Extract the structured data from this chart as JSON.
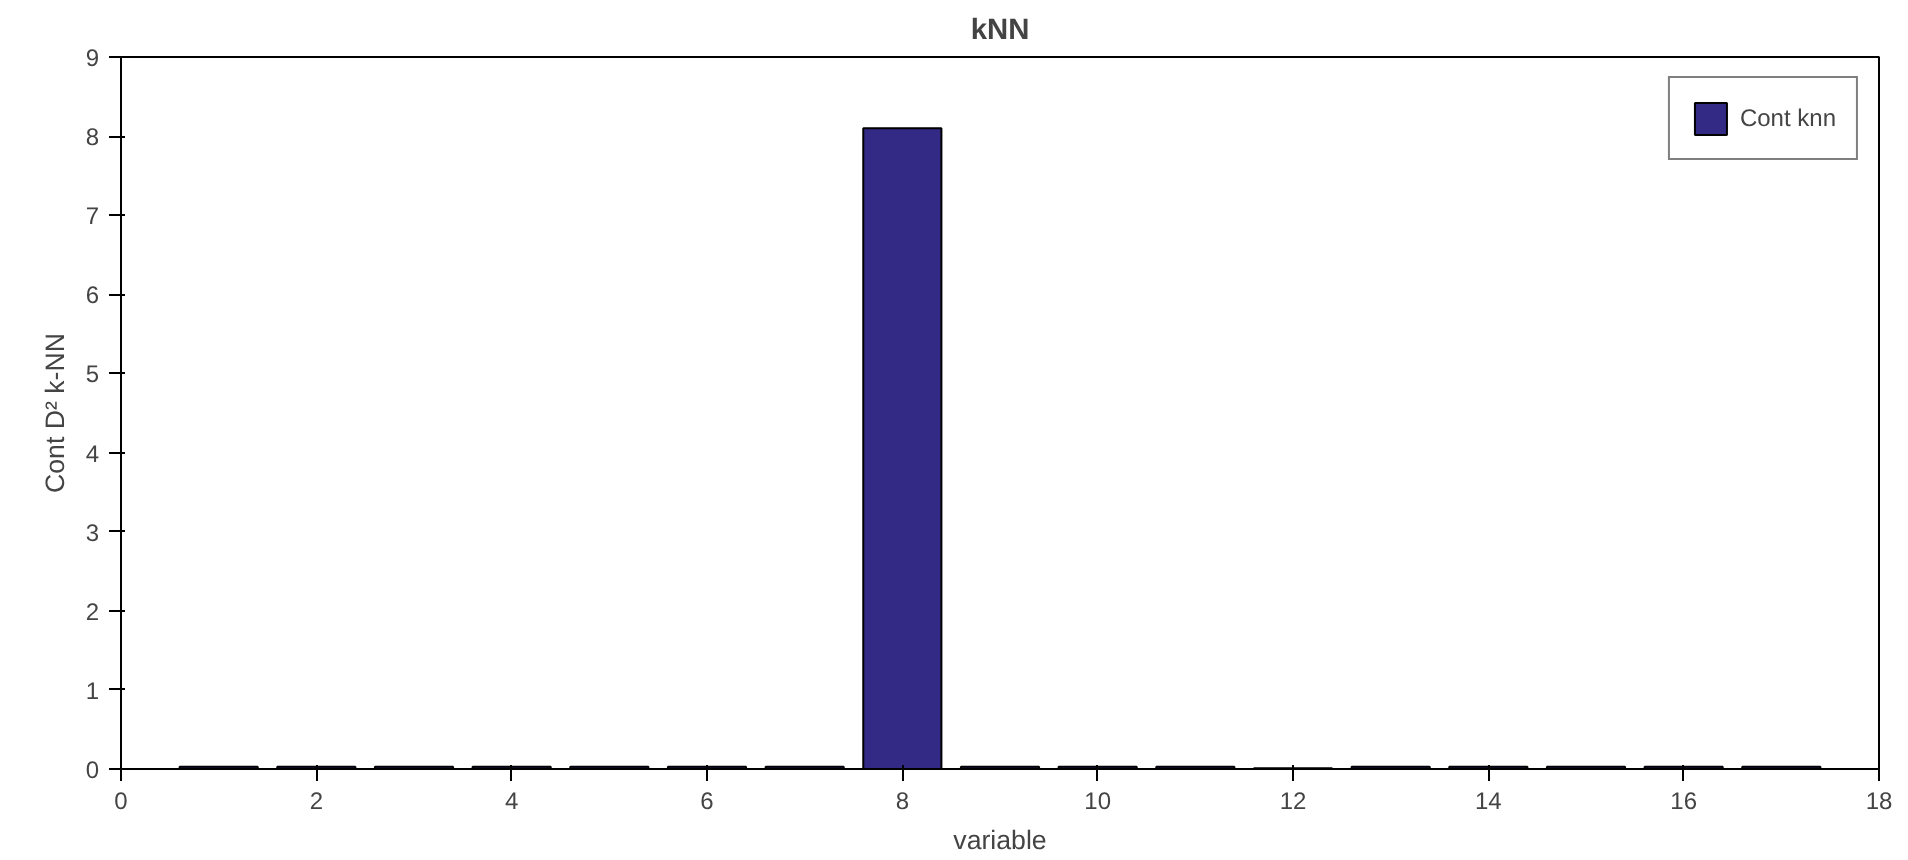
{
  "chart_data": {
    "type": "bar",
    "title": "kNN",
    "xlabel": "variable",
    "ylabel": "Cont D² k-NN",
    "x": [
      1,
      2,
      3,
      4,
      5,
      6,
      7,
      8,
      9,
      10,
      11,
      12,
      13,
      14,
      15,
      16,
      17
    ],
    "series": [
      {
        "name": "Cont knn",
        "color": "#332a85",
        "values": [
          0.03,
          0.03,
          0.03,
          0.03,
          0.03,
          0.03,
          0.03,
          8.1,
          0.03,
          0.03,
          0.03,
          0.01,
          0.03,
          0.03,
          0.03,
          0.03,
          0.03
        ]
      }
    ],
    "xlim": [
      0,
      18
    ],
    "xticks": [
      0,
      2,
      4,
      6,
      8,
      10,
      12,
      14,
      16,
      18
    ],
    "ylim": [
      0,
      9
    ],
    "yticks": [
      0,
      1,
      2,
      3,
      4,
      5,
      6,
      7,
      8,
      9
    ],
    "legend": "top right"
  }
}
